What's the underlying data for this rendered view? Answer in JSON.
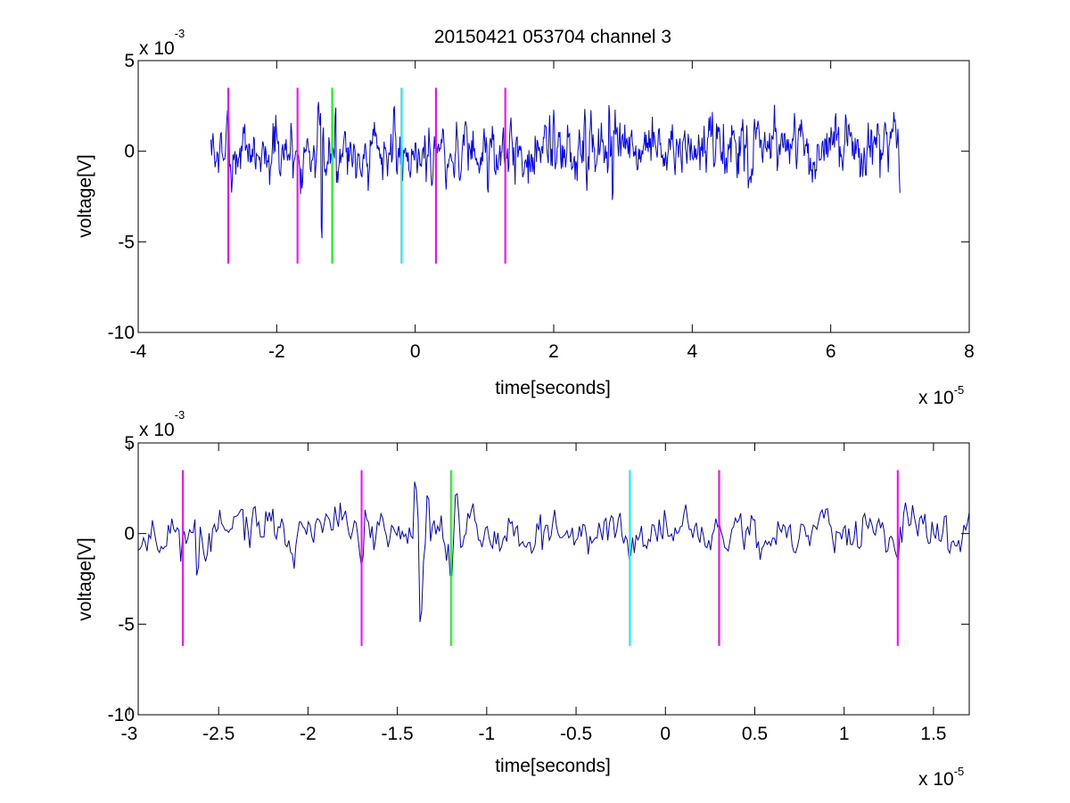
{
  "figure": {
    "title": "20150421 053704 channel 3"
  },
  "chart_data": [
    {
      "type": "line",
      "title": "20150421 053704 channel 3",
      "xlabel": "time[seconds]",
      "ylabel": "voltage[V]",
      "xlim": [
        -4e-05,
        8e-05
      ],
      "ylim": [
        -0.01,
        0.005
      ],
      "xticks": [
        -4e-05,
        -2e-05,
        0,
        2e-05,
        4e-05,
        6e-05,
        8e-05
      ],
      "xtick_labels": [
        "-4",
        "-2",
        "0",
        "2",
        "4",
        "6",
        "8"
      ],
      "yticks": [
        0.005,
        0,
        -0.005,
        -0.01
      ],
      "ytick_labels": [
        "5",
        "0",
        "-5",
        "-10"
      ],
      "x_exponent_mantissa": "x 10",
      "x_exponent_power": "-5",
      "y_exponent_mantissa": "x 10",
      "y_exponent_power": "-3",
      "grid": false,
      "series": [
        {
          "color": "#0000ff",
          "x_start": -2.95e-05,
          "x_end": 7e-05,
          "points": 1000,
          "seed": 7,
          "noise_std": 0.0009,
          "spikes": [
            {
              "x": -2.65e-05,
              "v": -0.0024
            },
            {
              "x": -1.4e-05,
              "v": 0.0032
            },
            {
              "x": -1.35e-05,
              "v": -0.0056
            },
            {
              "x": -1.15e-05,
              "v": 0.0027
            },
            {
              "x": 1.05e-05,
              "v": -0.0027
            },
            {
              "x": 2e-05,
              "v": 0.0023
            },
            {
              "x": 2.45e-05,
              "v": 0.0025
            },
            {
              "x": 2.8e-05,
              "v": 0.0029
            },
            {
              "x": 2.85e-05,
              "v": -0.0031
            },
            {
              "x": 4.9e-05,
              "v": 0.0019
            },
            {
              "x": 7e-05,
              "v": -0.0023
            }
          ]
        }
      ],
      "markers": [
        {
          "x": -2.7e-05,
          "color": "#ff00ff",
          "y_top": 0.0035,
          "y_bottom": -0.0062
        },
        {
          "x": -1.7e-05,
          "color": "#ff00ff",
          "y_top": 0.0035,
          "y_bottom": -0.0062
        },
        {
          "x": -1.2e-05,
          "color": "#00ff00",
          "y_top": 0.0035,
          "y_bottom": -0.0062
        },
        {
          "x": -2e-06,
          "color": "#00ffff",
          "y_top": 0.0035,
          "y_bottom": -0.0062
        },
        {
          "x": 3e-06,
          "color": "#ff00ff",
          "y_top": 0.0035,
          "y_bottom": -0.0062
        },
        {
          "x": 1.3e-05,
          "color": "#ff00ff",
          "y_top": 0.0035,
          "y_bottom": -0.0062
        }
      ]
    },
    {
      "type": "line",
      "xlabel": "time[seconds]",
      "ylabel": "voltage[V]",
      "xlim": [
        -2.95e-05,
        1.7e-05
      ],
      "ylim": [
        -0.01,
        0.005
      ],
      "xticks": [
        -3e-05,
        -2.5e-05,
        -2e-05,
        -1.5e-05,
        -1e-05,
        -5e-06,
        0,
        5e-06,
        1e-05,
        1.5e-05
      ],
      "xtick_labels": [
        "-3",
        "-2.5",
        "-2",
        "-1.5",
        "-1",
        "-0.5",
        "0",
        "0.5",
        "1",
        "1.5"
      ],
      "yticks": [
        0.005,
        0,
        -0.005,
        -0.01
      ],
      "ytick_labels": [
        "5",
        "0",
        "-5",
        "-10"
      ],
      "x_exponent_mantissa": "x 10",
      "x_exponent_power": "-5",
      "y_exponent_mantissa": "x 10",
      "y_exponent_power": "-3",
      "grid": false,
      "series": [
        {
          "color": "#0000cc",
          "x_start": -2.95e-05,
          "x_end": 1.7e-05,
          "points": 470,
          "seed": 11,
          "noise_std": 0.0007,
          "spikes": [
            {
              "x": -2.62e-05,
              "v": -0.0026
            },
            {
              "x": -2.3e-05,
              "v": 0.0018
            },
            {
              "x": -1.7e-05,
              "v": -0.0019
            },
            {
              "x": -1.4e-05,
              "v": 0.0033
            },
            {
              "x": -1.37e-05,
              "v": -0.0057
            },
            {
              "x": -1.33e-05,
              "v": 0.0025
            },
            {
              "x": -1.17e-05,
              "v": 0.0027
            },
            {
              "x": -1.2e-05,
              "v": -0.0029
            },
            {
              "x": -2e-06,
              "v": -0.0016
            },
            {
              "x": 1.3e-05,
              "v": -0.0017
            }
          ]
        }
      ],
      "markers": [
        {
          "x": -2.7e-05,
          "color": "#ff00ff",
          "y_top": 0.0035,
          "y_bottom": -0.0062
        },
        {
          "x": -1.7e-05,
          "color": "#ff00ff",
          "y_top": 0.0035,
          "y_bottom": -0.0062
        },
        {
          "x": -1.2e-05,
          "color": "#00ff00",
          "y_top": 0.0035,
          "y_bottom": -0.0062
        },
        {
          "x": -2e-06,
          "color": "#00ffff",
          "y_top": 0.0035,
          "y_bottom": -0.0062
        },
        {
          "x": 3e-06,
          "color": "#ff00ff",
          "y_top": 0.0035,
          "y_bottom": -0.0062
        },
        {
          "x": 1.3e-05,
          "color": "#ff00ff",
          "y_top": 0.0035,
          "y_bottom": -0.0062
        }
      ]
    }
  ]
}
